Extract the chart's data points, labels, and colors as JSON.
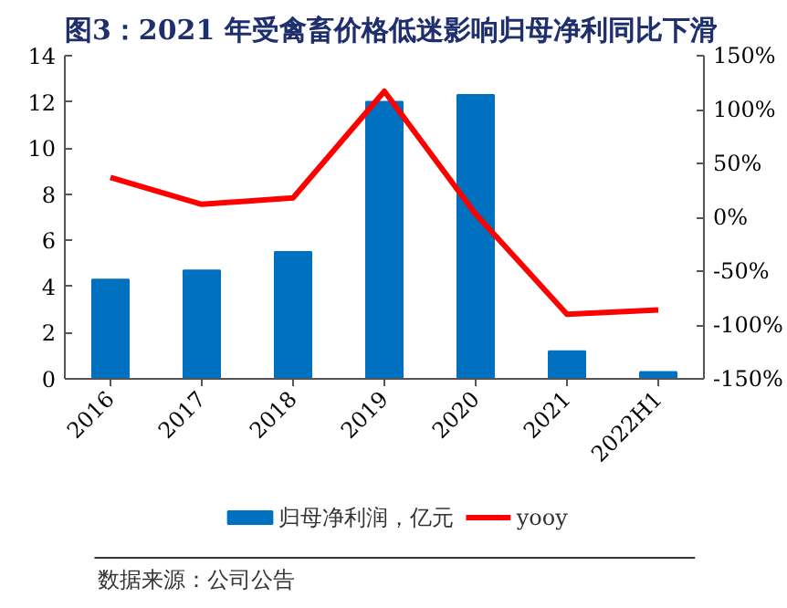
{
  "chart_data": {
    "type": "bar",
    "title": "图3：2021 年受禽畜价格低迷影响归母净利同比下滑",
    "categories": [
      "2016",
      "2017",
      "2018",
      "2019",
      "2020",
      "2021",
      "2022H1"
    ],
    "series": [
      {
        "name": "归母净利润，亿元",
        "color": "#0070c0",
        "values": [
          4.3,
          4.7,
          5.5,
          12.0,
          12.3,
          1.2,
          0.3
        ]
      },
      {
        "name": "yooy",
        "type": "line",
        "axis": "y2",
        "color": "#ff0000",
        "values": [
          37,
          12,
          18,
          117,
          3,
          -90,
          -86
        ]
      }
    ],
    "ylim": [
      0,
      14
    ],
    "yticks": [
      0,
      2,
      4,
      6,
      8,
      10,
      12,
      14
    ],
    "y2lim": [
      -150,
      150
    ],
    "y2ticks": [
      {
        "value": -150,
        "label": "-150%"
      },
      {
        "value": -100,
        "label": "-100%"
      },
      {
        "value": -50,
        "label": "-50%"
      },
      {
        "value": 0,
        "label": "0%"
      },
      {
        "value": 50,
        "label": "50%"
      },
      {
        "value": 100,
        "label": "100%"
      },
      {
        "value": 150,
        "label": "150%"
      }
    ],
    "grid": false,
    "legend": "bottom",
    "marker": "none",
    "line_style": "solid",
    "annotations": [
      "数据来源：公司公告"
    ]
  }
}
